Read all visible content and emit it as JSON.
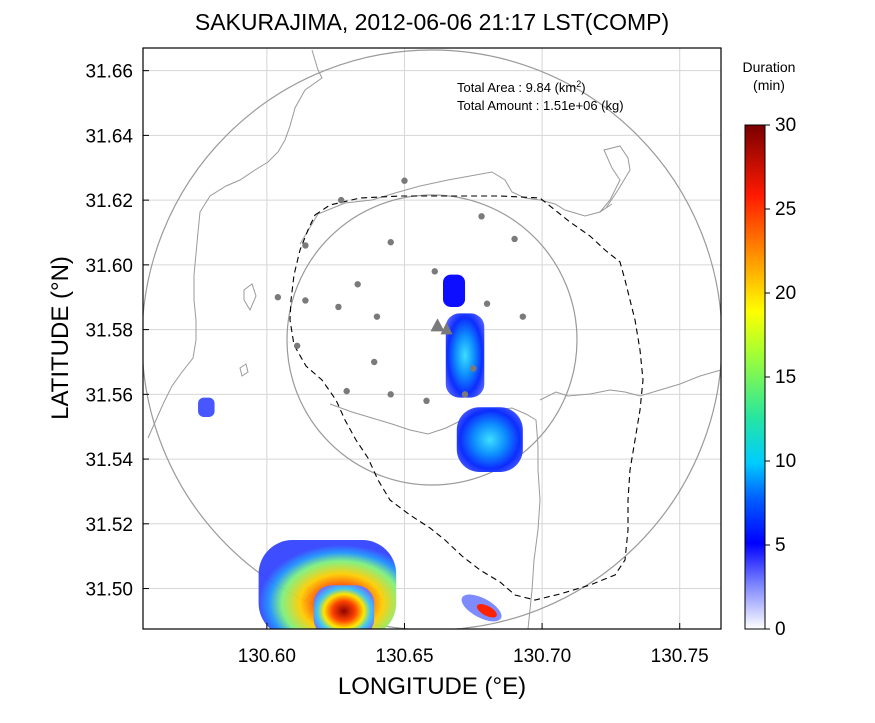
{
  "chart_data": {
    "type": "heatmap",
    "title": "SAKURAJIMA, 2012-06-06 21:17 LST(COMP)",
    "xlabel": "LONGITUDE (°E)",
    "ylabel": "LATITUDE (°N)",
    "xlim": [
      130.555,
      130.765
    ],
    "ylim": [
      31.4875,
      31.667
    ],
    "x_ticks": [
      130.6,
      130.65,
      130.7,
      130.75
    ],
    "x_tick_labels": [
      "130.60",
      "130.65",
      "130.70",
      "130.75"
    ],
    "y_ticks": [
      31.5,
      31.52,
      31.54,
      31.56,
      31.58,
      31.6,
      31.62,
      31.64,
      31.66
    ],
    "y_tick_labels": [
      "31.50",
      "31.52",
      "31.54",
      "31.56",
      "31.58",
      "31.60",
      "31.62",
      "31.64",
      "31.66"
    ],
    "grid": true,
    "annotations": {
      "area_label": "Total Area   : 9.84 (km",
      "area_sup": "2",
      "area_close": ")",
      "amount_label": "Total Amount : 1.51e+06 (kg)"
    },
    "colorbar": {
      "title_line1": "Duration",
      "title_line2": "(min)",
      "min": 0,
      "max": 30,
      "ticks": [
        0,
        5,
        10,
        15,
        20,
        25,
        30
      ],
      "tick_labels": [
        "0",
        "5",
        "10",
        "15",
        "20",
        "25",
        "30"
      ],
      "colors": [
        "#ffffff",
        "#3d4dff",
        "#0000ff",
        "#0088ff",
        "#00e6ff",
        "#26ff99",
        "#a0ff3a",
        "#ffff00",
        "#ff9900",
        "#ff2a00",
        "#cc0000",
        "#7a0000"
      ]
    },
    "vent": {
      "lon": 130.662,
      "lat": 31.581
    },
    "range_rings": [
      {
        "center_lon": 130.655,
        "center_lat": 31.555,
        "radius_km": 20
      },
      {
        "center_lon": 130.655,
        "center_lat": 31.577,
        "radius_km": 8.5
      }
    ],
    "stations": [
      [
        130.65,
        31.626
      ],
      [
        130.627,
        31.62
      ],
      [
        130.614,
        31.606
      ],
      [
        130.645,
        31.607
      ],
      [
        130.678,
        31.615
      ],
      [
        130.69,
        31.608
      ],
      [
        130.604,
        31.59
      ],
      [
        130.614,
        31.589
      ],
      [
        130.626,
        31.587
      ],
      [
        130.633,
        31.594
      ],
      [
        130.64,
        31.584
      ],
      [
        130.661,
        31.598
      ],
      [
        130.68,
        31.588
      ],
      [
        130.693,
        31.584
      ],
      [
        130.611,
        31.575
      ],
      [
        130.639,
        31.57
      ],
      [
        130.629,
        31.561
      ],
      [
        130.645,
        31.56
      ],
      [
        130.658,
        31.558
      ],
      [
        130.672,
        31.56
      ],
      [
        130.675,
        31.568
      ]
    ],
    "ash_blobs": [
      {
        "name": "plume-upper",
        "lon": 130.668,
        "lat": 31.592,
        "w_deg": 0.008,
        "h_deg": 0.01,
        "value": 5
      },
      {
        "name": "plume-middle",
        "lon": 130.672,
        "lat": 31.572,
        "w_deg": 0.014,
        "h_deg": 0.026,
        "value": 8
      },
      {
        "name": "plume-lower",
        "lon": 130.681,
        "lat": 31.546,
        "w_deg": 0.024,
        "h_deg": 0.02,
        "value": 11
      },
      {
        "name": "isolated-cell-west",
        "lon": 130.578,
        "lat": 31.556,
        "w_deg": 0.006,
        "h_deg": 0.006,
        "value": 4
      },
      {
        "name": "deposit-southwest",
        "lon": 130.622,
        "lat": 31.5,
        "w_deg": 0.05,
        "h_deg": 0.03,
        "value": 18
      },
      {
        "name": "deposit-southwest-core",
        "lon": 130.628,
        "lat": 31.493,
        "w_deg": 0.022,
        "h_deg": 0.016,
        "value": 28
      },
      {
        "name": "streak-south",
        "lon": 130.678,
        "lat": 31.494,
        "w_deg": 0.016,
        "h_deg": 0.006,
        "value": 25
      }
    ]
  }
}
